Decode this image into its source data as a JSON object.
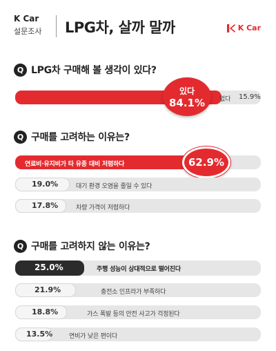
{
  "header": {
    "brand": "K Car",
    "subtitle": "설문조사",
    "title": "LPG차, 살까 말까",
    "logo_text": "K Car"
  },
  "colors": {
    "accent": "#e32b2f",
    "dark": "#2b2b2b",
    "track": "#e6e6e6"
  },
  "chart_data": [
    {
      "type": "bar",
      "title": "LPG차 구매해 볼 생각이 있다?",
      "question_badge": "Q",
      "categories": [
        "있다",
        "없다"
      ],
      "values": [
        84.1,
        15.9
      ],
      "value_labels": [
        "84.1%",
        "15.9%"
      ]
    },
    {
      "type": "bar",
      "title": "구매를 고려하는 이유는?",
      "question_badge": "Q",
      "categories": [
        "연료비·유지비가 타 유종 대비 저렴하다",
        "대기 환경 오염을 줄일 수 있다",
        "차량 가격이 저렴하다"
      ],
      "values": [
        62.9,
        19.0,
        17.8
      ],
      "value_labels": [
        "62.9%",
        "19.0%",
        "17.8%"
      ]
    },
    {
      "type": "bar",
      "title": "구매를 고려하지 않는 이유는?",
      "question_badge": "Q",
      "categories": [
        "주행 성능이 상대적으로 떨어진다",
        "충전소 인프라가 부족하다",
        "가스 폭발 등의 안전 사고가 걱정된다",
        "연비가 낮은 편이다"
      ],
      "values": [
        25.0,
        21.9,
        18.8,
        13.5
      ],
      "value_labels": [
        "25.0%",
        "21.9%",
        "18.8%",
        "13.5%"
      ]
    }
  ]
}
